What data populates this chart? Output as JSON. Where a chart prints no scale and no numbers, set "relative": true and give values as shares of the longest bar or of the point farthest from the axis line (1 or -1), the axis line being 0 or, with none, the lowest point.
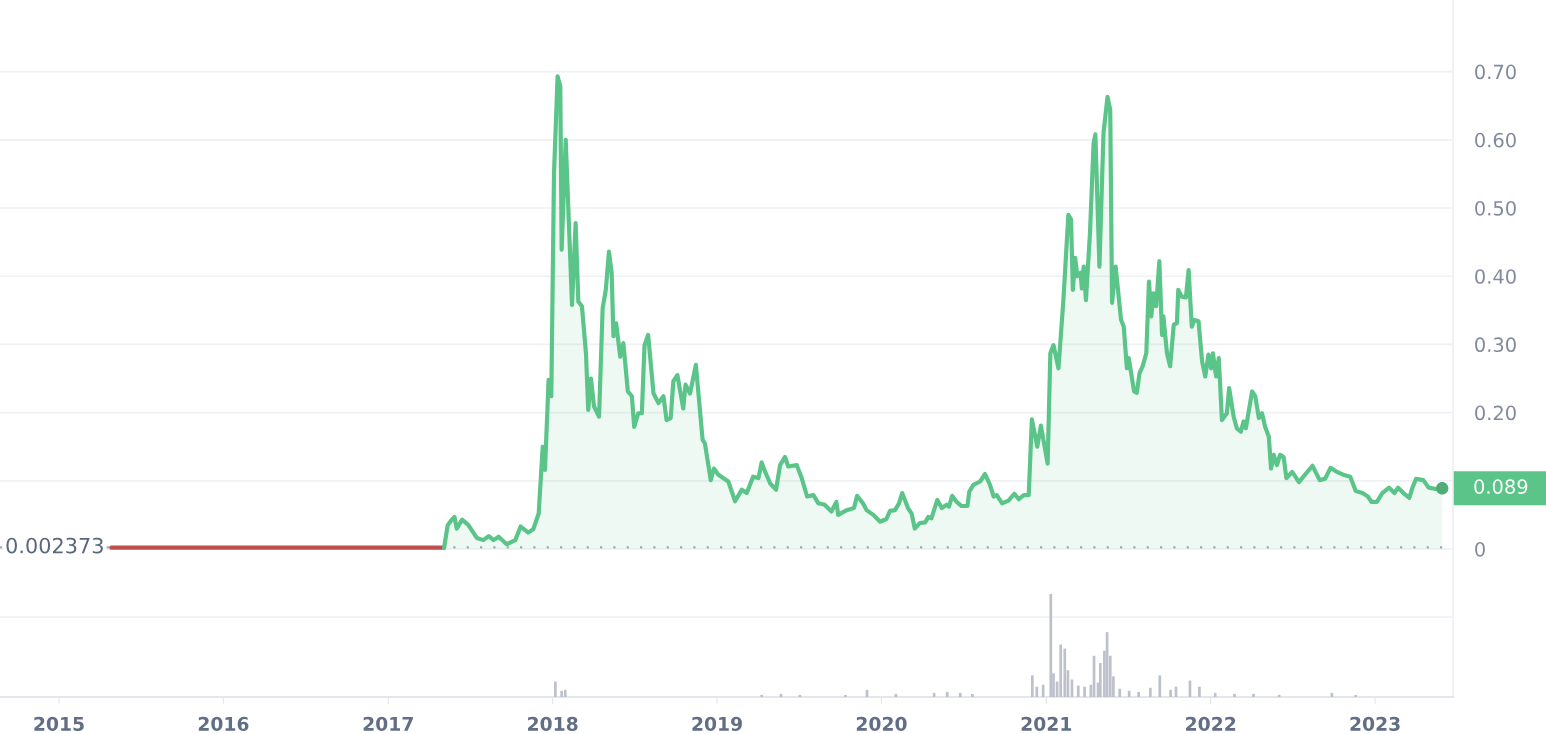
{
  "chart_data": [
    {
      "type": "line",
      "xlim": [
        "2014-08-23",
        "2023-06-23"
      ],
      "xticks": [
        {
          "value": "2015-01-01",
          "label": "2015"
        },
        {
          "value": "2016-01-01",
          "label": "2016"
        },
        {
          "value": "2017-01-01",
          "label": "2017"
        },
        {
          "value": "2018-01-01",
          "label": "2018"
        },
        {
          "value": "2019-01-01",
          "label": "2019"
        },
        {
          "value": "2020-01-01",
          "label": "2020"
        },
        {
          "value": "2021-01-01",
          "label": "2021"
        },
        {
          "value": "2022-01-01",
          "label": "2022"
        },
        {
          "value": "2023-01-01",
          "label": "2023"
        }
      ],
      "ylim": [
        -0.217,
        0.805
      ],
      "yticks": [
        {
          "value": -0.1,
          "label": null
        },
        0,
        {
          "value": 0.1,
          "label": null
        },
        {
          "value": 0.2,
          "label": "0.20"
        },
        {
          "value": 0.3,
          "label": "0.30"
        },
        {
          "value": 0.4,
          "label": "0.40"
        },
        {
          "value": 0.5,
          "label": "0.50"
        },
        {
          "value": 0.6,
          "label": "0.60"
        },
        {
          "value": 0.7,
          "label": "0.70"
        }
      ],
      "grid": "y",
      "series": [
        {
          "type": "line",
          "color": "#c0504d",
          "x": [
            "2015-04-27",
            "2015-09-01",
            "2016-01-01",
            "2016-05-01",
            "2016-09-01",
            "2017-01-01",
            "2017-05-05"
          ],
          "values": [
            0.002,
            0.002,
            0.002,
            0.002,
            0.002,
            0.002,
            0.002
          ]
        },
        {
          "type": "area",
          "color": "#5bc489",
          "x": [
            "2017-05-05",
            "2017-05-13",
            "2017-05-22",
            "2017-05-28",
            "2017-06-02",
            "2017-06-14",
            "2017-06-28",
            "2017-07-17",
            "2017-07-31",
            "2017-08-12",
            "2017-08-23",
            "2017-09-03",
            "2017-09-21",
            "2017-10-10",
            "2017-10-22",
            "2017-11-08",
            "2017-11-19",
            "2017-12-01",
            "2017-12-10",
            "2017-12-15",
            "2017-12-23",
            "2017-12-29",
            "2018-01-04",
            "2018-01-12",
            "2018-01-18",
            "2018-01-21",
            "2018-01-30",
            "2018-02-13",
            "2018-02-21",
            "2018-02-27",
            "2018-03-07",
            "2018-03-16",
            "2018-03-21",
            "2018-03-27",
            "2018-04-03",
            "2018-04-14",
            "2018-04-22",
            "2018-04-29",
            "2018-05-06",
            "2018-05-12",
            "2018-05-16",
            "2018-05-22",
            "2018-05-31",
            "2018-06-07",
            "2018-06-17",
            "2018-06-26",
            "2018-07-01",
            "2018-07-10",
            "2018-07-18",
            "2018-07-24",
            "2018-08-01",
            "2018-08-13",
            "2018-08-24",
            "2018-09-04",
            "2018-09-11",
            "2018-09-20",
            "2018-09-26",
            "2018-10-05",
            "2018-10-18",
            "2018-10-23",
            "2018-11-02",
            "2018-11-15",
            "2018-11-30",
            "2018-12-05",
            "2018-12-18",
            "2018-12-25",
            "2019-01-04",
            "2019-01-26",
            "2019-02-10",
            "2019-02-25",
            "2019-03-08",
            "2019-03-22",
            "2019-04-03",
            "2019-04-10",
            "2019-04-18",
            "2019-04-29",
            "2019-05-12",
            "2019-05-21",
            "2019-06-01",
            "2019-06-08",
            "2019-06-27",
            "2019-07-08",
            "2019-07-20",
            "2019-08-03",
            "2019-08-14",
            "2019-08-28",
            "2019-09-12",
            "2019-09-23",
            "2019-09-27",
            "2019-10-16",
            "2019-11-01",
            "2019-11-08",
            "2019-11-21",
            "2019-11-29",
            "2019-12-14",
            "2019-12-29",
            "2020-01-12",
            "2020-01-20",
            "2020-01-31",
            "2020-02-09",
            "2020-02-16",
            "2020-02-29",
            "2020-03-08",
            "2020-03-15",
            "2020-03-26",
            "2020-04-07",
            "2020-04-14",
            "2020-04-21",
            "2020-05-04",
            "2020-05-14",
            "2020-05-25",
            "2020-05-30",
            "2020-06-06",
            "2020-06-16",
            "2020-06-27",
            "2020-07-10",
            "2020-07-14",
            "2020-07-23",
            "2020-08-07",
            "2020-08-18",
            "2020-08-29",
            "2020-09-06",
            "2020-09-13",
            "2020-09-25",
            "2020-10-09",
            "2020-10-22",
            "2020-11-01",
            "2020-11-12",
            "2020-11-23",
            "2020-11-30",
            "2020-12-12",
            "2020-12-20",
            "2021-01-04",
            "2021-01-10",
            "2021-01-17",
            "2021-01-28",
            "2021-02-08",
            "2021-02-19",
            "2021-02-25",
            "2021-03-01",
            "2021-03-06",
            "2021-03-11",
            "2021-03-18",
            "2021-03-21",
            "2021-03-25",
            "2021-03-30",
            "2021-04-08",
            "2021-04-16",
            "2021-04-20",
            "2021-04-29",
            "2021-05-08",
            "2021-05-17",
            "2021-05-23",
            "2021-05-27",
            "2021-06-04",
            "2021-06-16",
            "2021-06-22",
            "2021-06-29",
            "2021-07-03",
            "2021-07-15",
            "2021-07-21",
            "2021-07-27",
            "2021-08-03",
            "2021-08-11",
            "2021-08-17",
            "2021-08-22",
            "2021-08-27",
            "2021-09-02",
            "2021-09-09",
            "2021-09-15",
            "2021-09-18",
            "2021-09-26",
            "2021-10-03",
            "2021-10-11",
            "2021-10-18",
            "2021-10-21",
            "2021-10-29",
            "2021-11-07",
            "2021-11-13",
            "2021-11-20",
            "2021-11-26",
            "2021-12-05",
            "2021-12-13",
            "2021-12-20",
            "2021-12-27",
            "2022-01-02",
            "2022-01-06",
            "2022-01-13",
            "2022-01-19",
            "2022-01-26",
            "2022-02-06",
            "2022-02-11",
            "2022-02-21",
            "2022-02-28",
            "2022-03-09",
            "2022-03-15",
            "2022-03-20",
            "2022-04-03",
            "2022-04-10",
            "2022-04-18",
            "2022-04-25",
            "2022-05-02",
            "2022-05-10",
            "2022-05-15",
            "2022-05-21",
            "2022-05-28",
            "2022-06-04",
            "2022-06-12",
            "2022-06-18",
            "2022-07-01",
            "2022-07-16",
            "2022-08-01",
            "2022-08-15",
            "2022-08-31",
            "2022-09-12",
            "2022-09-24",
            "2022-10-06",
            "2022-10-22",
            "2022-11-07",
            "2022-11-19",
            "2022-12-04",
            "2022-12-16",
            "2022-12-24",
            "2023-01-05",
            "2023-01-17",
            "2023-02-01",
            "2023-02-13",
            "2023-02-21",
            "2023-03-05",
            "2023-03-18",
            "2023-03-25",
            "2023-04-02",
            "2023-04-18",
            "2023-04-30",
            "2023-05-16",
            "2023-05-30"
          ],
          "values": [
            0.002,
            0.035,
            0.043,
            0.047,
            0.03,
            0.043,
            0.035,
            0.016,
            0.013,
            0.019,
            0.013,
            0.018,
            0.007,
            0.013,
            0.033,
            0.024,
            0.029,
            0.052,
            0.15,
            0.116,
            0.248,
            0.224,
            0.551,
            0.693,
            0.678,
            0.439,
            0.6,
            0.358,
            0.478,
            0.363,
            0.356,
            0.287,
            0.204,
            0.25,
            0.209,
            0.194,
            0.353,
            0.38,
            0.436,
            0.405,
            0.312,
            0.331,
            0.282,
            0.302,
            0.231,
            0.224,
            0.179,
            0.199,
            0.199,
            0.299,
            0.314,
            0.228,
            0.214,
            0.224,
            0.189,
            0.192,
            0.246,
            0.255,
            0.206,
            0.241,
            0.228,
            0.27,
            0.16,
            0.155,
            0.101,
            0.118,
            0.109,
            0.099,
            0.07,
            0.087,
            0.082,
            0.106,
            0.104,
            0.127,
            0.113,
            0.096,
            0.087,
            0.123,
            0.135,
            0.121,
            0.123,
            0.104,
            0.077,
            0.079,
            0.067,
            0.065,
            0.055,
            0.069,
            0.05,
            0.057,
            0.06,
            0.078,
            0.067,
            0.057,
            0.05,
            0.04,
            0.044,
            0.056,
            0.057,
            0.067,
            0.082,
            0.06,
            0.052,
            0.03,
            0.038,
            0.039,
            0.047,
            0.045,
            0.072,
            0.06,
            0.065,
            0.062,
            0.078,
            0.069,
            0.063,
            0.063,
            0.084,
            0.094,
            0.099,
            0.11,
            0.094,
            0.077,
            0.079,
            0.067,
            0.071,
            0.081,
            0.073,
            0.079,
            0.079,
            0.19,
            0.15,
            0.181,
            0.125,
            0.287,
            0.299,
            0.265,
            0.365,
            0.49,
            0.483,
            0.38,
            0.427,
            0.4,
            0.405,
            0.382,
            0.414,
            0.365,
            0.463,
            0.595,
            0.608,
            0.414,
            0.61,
            0.663,
            0.644,
            0.361,
            0.414,
            0.336,
            0.326,
            0.265,
            0.28,
            0.231,
            0.229,
            0.258,
            0.268,
            0.287,
            0.392,
            0.341,
            0.375,
            0.356,
            0.422,
            0.314,
            0.341,
            0.287,
            0.268,
            0.329,
            0.331,
            0.38,
            0.37,
            0.369,
            0.409,
            0.326,
            0.336,
            0.334,
            0.275,
            0.253,
            0.285,
            0.265,
            0.287,
            0.253,
            0.28,
            0.189,
            0.199,
            0.236,
            0.194,
            0.177,
            0.172,
            0.187,
            0.177,
            0.231,
            0.224,
            0.192,
            0.199,
            0.179,
            0.165,
            0.118,
            0.138,
            0.123,
            0.138,
            0.135,
            0.104,
            0.113,
            0.098,
            0.111,
            0.122,
            0.101,
            0.103,
            0.119,
            0.114,
            0.109,
            0.106,
            0.085,
            0.082,
            0.077,
            0.069,
            0.069,
            0.082,
            0.09,
            0.082,
            0.09,
            0.082,
            0.075,
            0.09,
            0.103,
            0.101,
            0.09,
            0.088,
            0.089
          ]
        }
      ],
      "ref_lines": [
        {
          "axis": "y",
          "value": 0.002373,
          "label": "0.002373",
          "line_style": "dotted",
          "color": "#a3a9b5"
        }
      ],
      "annotations": [
        {
          "text": "0.089",
          "x": "2023-05-30",
          "y": 0.089
        }
      ]
    },
    {
      "type": "bar",
      "relative": true,
      "tick_labels": false,
      "xlim": [
        "2014-08-23",
        "2023-06-23"
      ],
      "color": "#bcc1cc",
      "x": [
        "2018-01-07",
        "2018-01-21",
        "2018-01-29",
        "2019-04-10",
        "2019-05-23",
        "2019-07-04",
        "2019-10-13",
        "2019-11-30",
        "2020-02-02",
        "2020-04-27",
        "2020-05-26",
        "2020-06-24",
        "2020-07-21",
        "2020-12-01",
        "2020-12-11",
        "2020-12-25",
        "2021-01-11",
        "2021-01-17",
        "2021-01-25",
        "2021-02-02",
        "2021-02-11",
        "2021-02-18",
        "2021-02-27",
        "2021-03-13",
        "2021-03-27",
        "2021-04-10",
        "2021-04-17",
        "2021-04-26",
        "2021-05-01",
        "2021-05-10",
        "2021-05-16",
        "2021-05-23",
        "2021-05-30",
        "2021-06-13",
        "2021-07-04",
        "2021-07-25",
        "2021-08-20",
        "2021-09-10",
        "2021-10-04",
        "2021-10-16",
        "2021-11-16",
        "2021-12-07",
        "2022-01-11",
        "2022-02-23",
        "2022-04-06",
        "2022-06-02",
        "2022-09-27",
        "2022-11-19"
      ],
      "values": [
        0.15,
        0.06,
        0.07,
        0.02,
        0.03,
        0.02,
        0.02,
        0.07,
        0.03,
        0.04,
        0.05,
        0.04,
        0.03,
        0.21,
        0.1,
        0.12,
        1.0,
        0.23,
        0.15,
        0.51,
        0.47,
        0.26,
        0.17,
        0.11,
        0.1,
        0.12,
        0.4,
        0.14,
        0.33,
        0.45,
        0.63,
        0.4,
        0.2,
        0.08,
        0.06,
        0.05,
        0.09,
        0.21,
        0.07,
        0.1,
        0.16,
        0.1,
        0.04,
        0.03,
        0.03,
        0.02,
        0.04,
        0.02
      ]
    }
  ]
}
